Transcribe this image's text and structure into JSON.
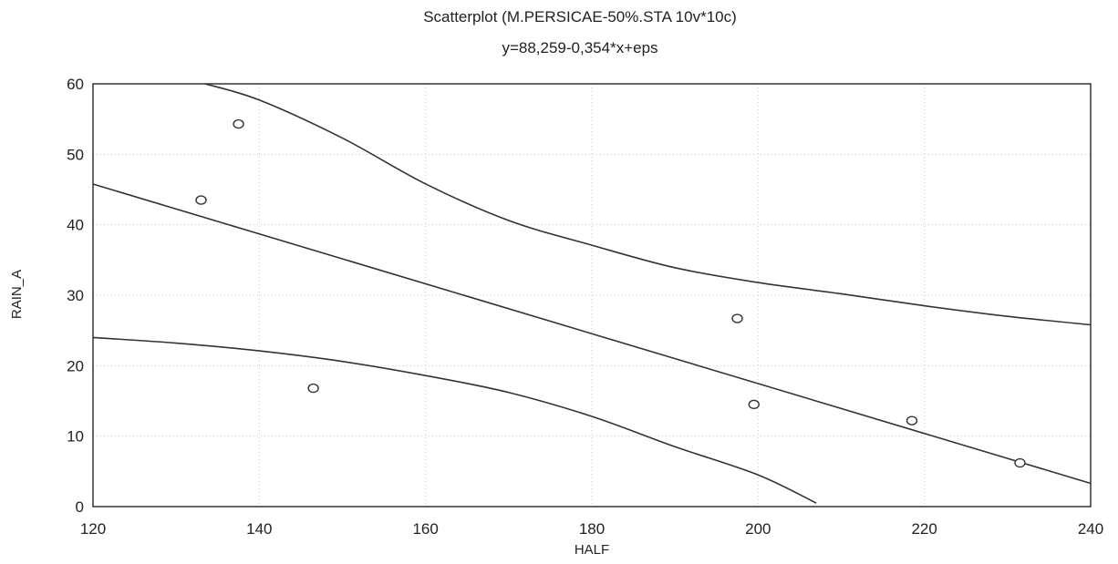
{
  "chart_data": {
    "type": "scatter",
    "title": "Scatterplot (M.PERSICAE-50%.STA 10v*10c)",
    "subtitle": "y=88,259-0,354*x+eps",
    "xlabel": "HALF",
    "ylabel": "RAIN_A",
    "xlim": [
      120,
      240
    ],
    "ylim": [
      0,
      60
    ],
    "xticks": [
      120,
      140,
      160,
      180,
      200,
      220,
      240
    ],
    "yticks": [
      0,
      10,
      20,
      30,
      40,
      50,
      60
    ],
    "grid": true,
    "points": [
      {
        "x": 133,
        "y": 43.5
      },
      {
        "x": 137.5,
        "y": 54.3
      },
      {
        "x": 146.5,
        "y": 16.8
      },
      {
        "x": 197.5,
        "y": 26.7
      },
      {
        "x": 199.5,
        "y": 14.5
      },
      {
        "x": 218.5,
        "y": 12.2
      },
      {
        "x": 231.5,
        "y": 6.2
      }
    ],
    "regression": {
      "intercept": 88.259,
      "slope": -0.354
    },
    "confidence_upper": [
      [
        133.5,
        60
      ],
      [
        140,
        57.7
      ],
      [
        150,
        52.3
      ],
      [
        160,
        45.8
      ],
      [
        170,
        40.6
      ],
      [
        180,
        37.1
      ],
      [
        190,
        33.9
      ],
      [
        200,
        31.8
      ],
      [
        210,
        30.2
      ],
      [
        220,
        28.5
      ],
      [
        230,
        27.0
      ],
      [
        240,
        25.8
      ]
    ],
    "confidence_lower": [
      [
        120,
        24.0
      ],
      [
        130,
        23.2
      ],
      [
        140,
        22.1
      ],
      [
        150,
        20.6
      ],
      [
        160,
        18.6
      ],
      [
        170,
        16.2
      ],
      [
        180,
        12.8
      ],
      [
        190,
        8.5
      ],
      [
        200,
        4.5
      ],
      [
        207,
        0.5
      ]
    ]
  }
}
